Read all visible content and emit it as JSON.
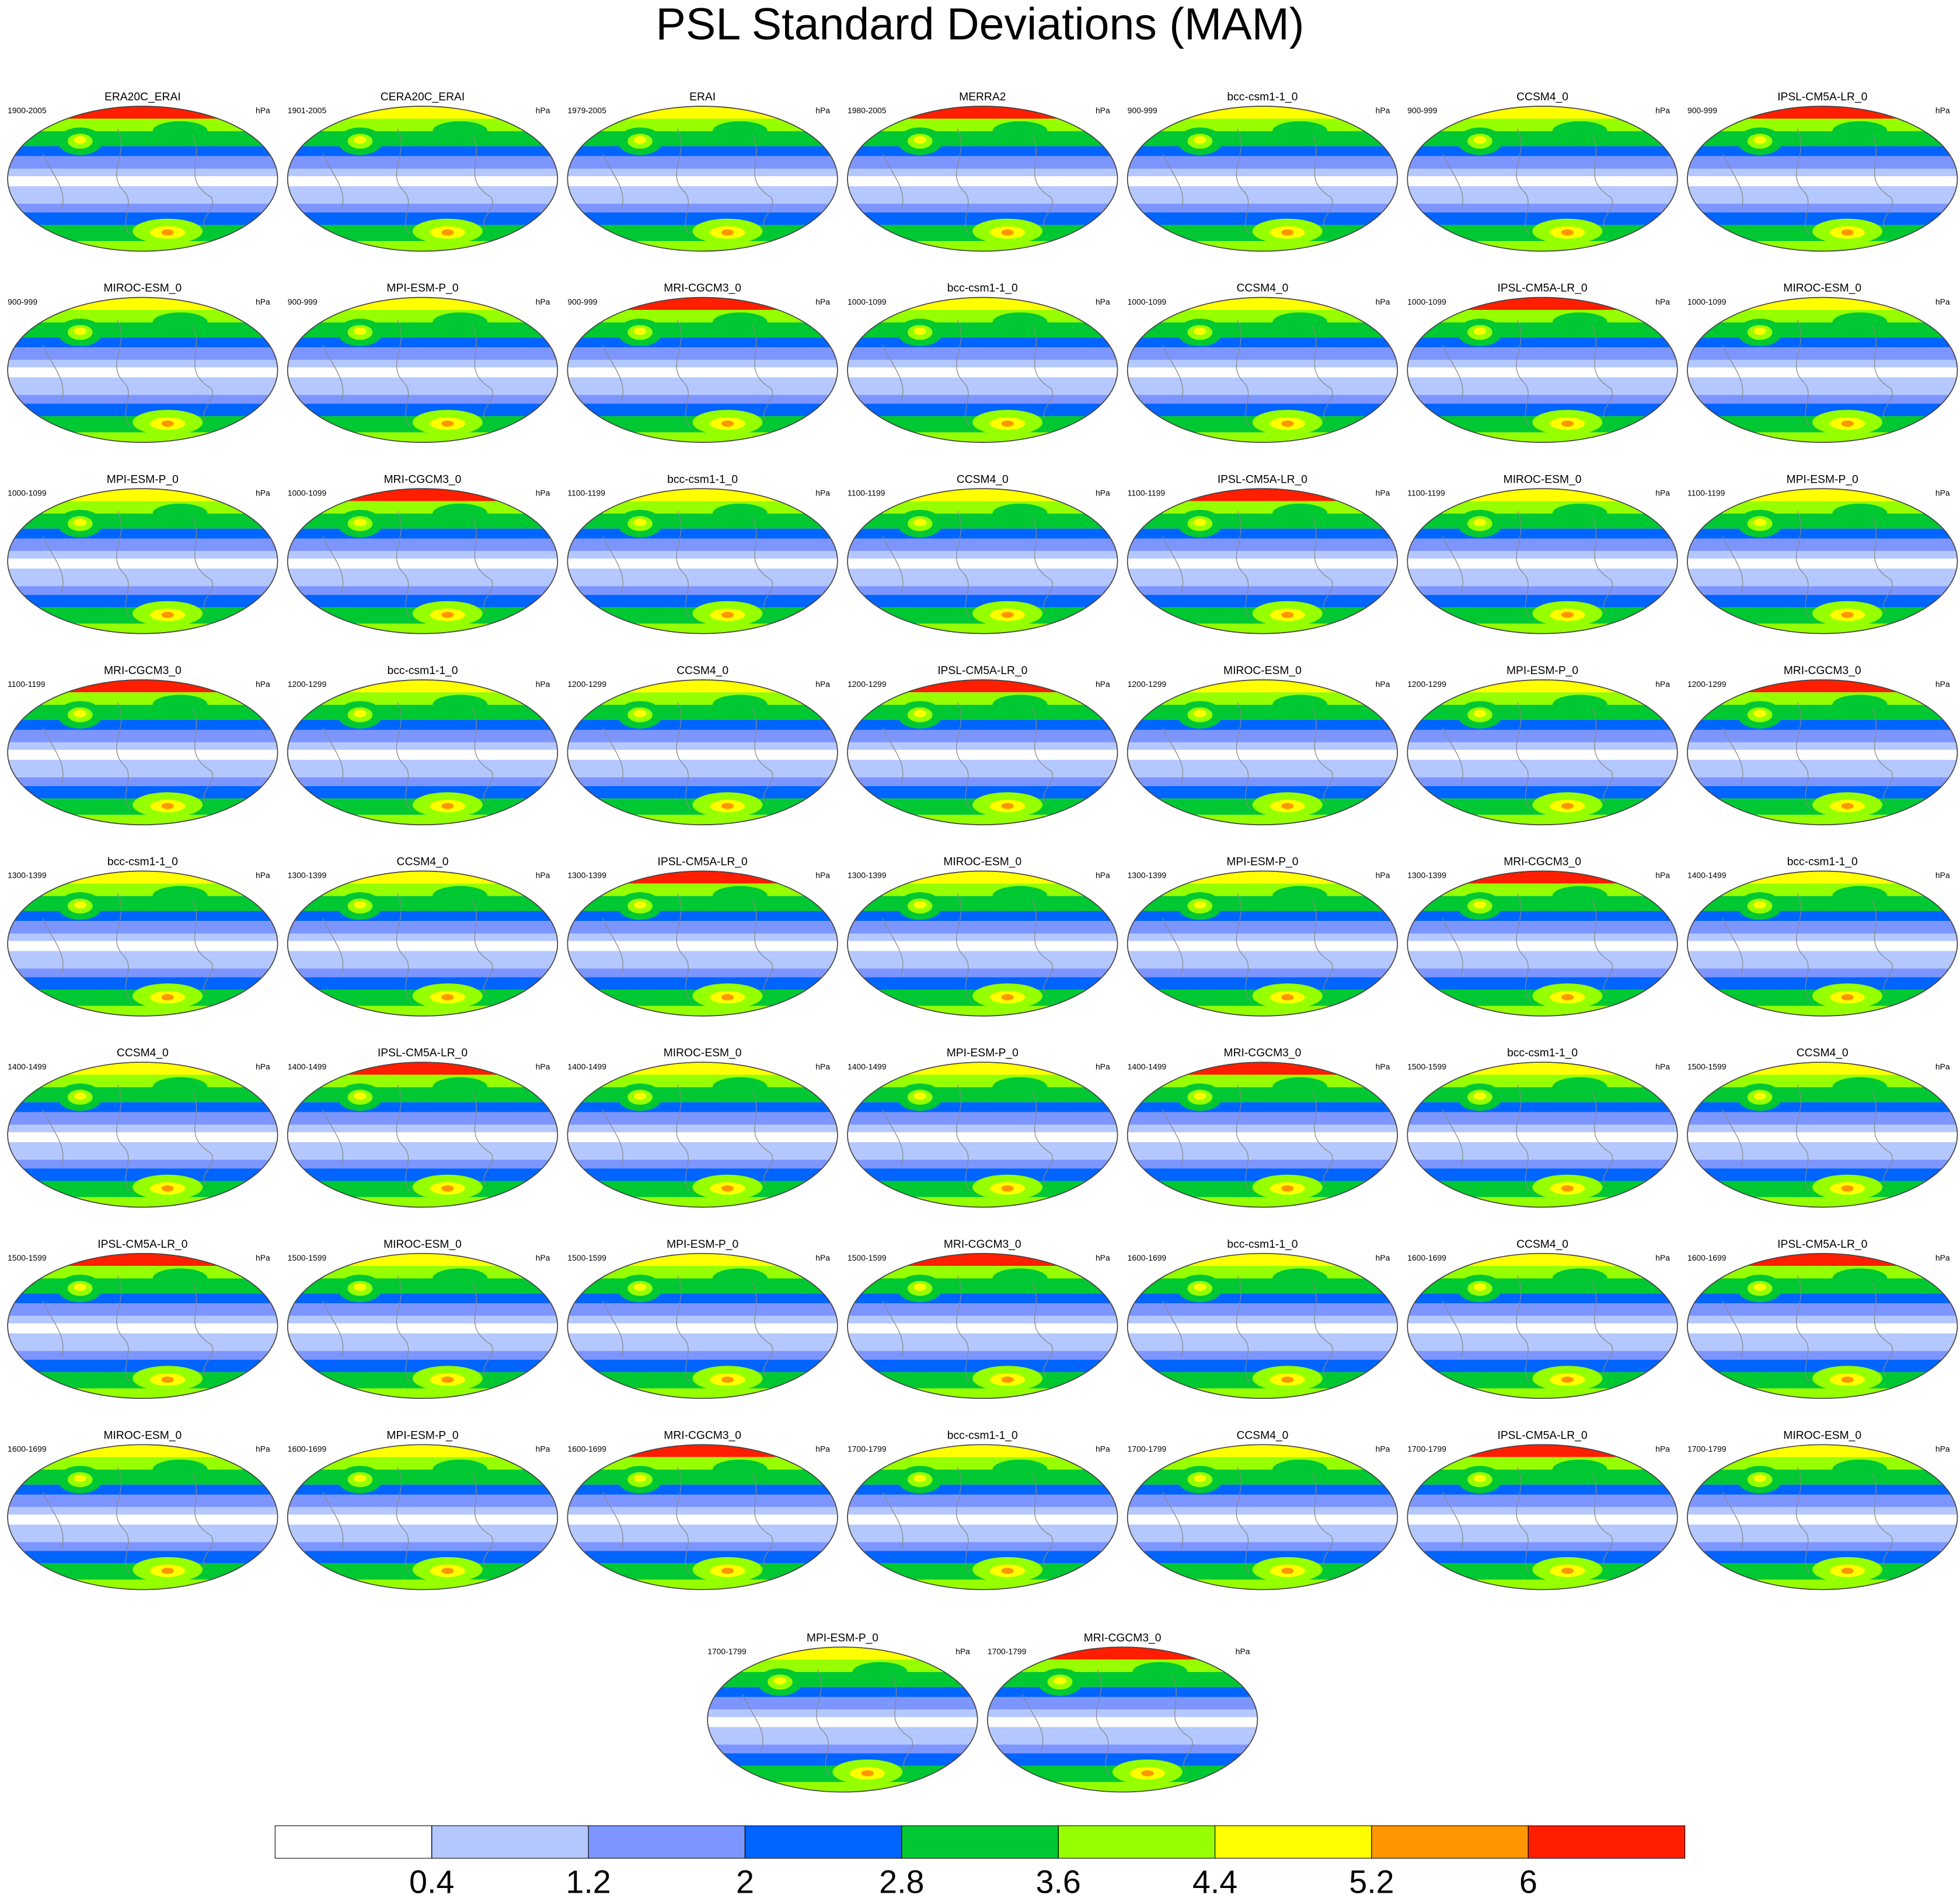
{
  "title": "PSL Standard Deviations (MAM)",
  "units": "hPa",
  "panels": [
    {
      "title": "ERA20C_ERAI",
      "period": "1900-2005"
    },
    {
      "title": "CERA20C_ERAI",
      "period": "1901-2005"
    },
    {
      "title": "ERAI",
      "period": "1979-2005"
    },
    {
      "title": "MERRA2",
      "period": "1980-2005"
    },
    {
      "title": "bcc-csm1-1_0",
      "period": "900-999"
    },
    {
      "title": "CCSM4_0",
      "period": "900-999"
    },
    {
      "title": "IPSL-CM5A-LR_0",
      "period": "900-999"
    },
    {
      "title": "MIROC-ESM_0",
      "period": "900-999"
    },
    {
      "title": "MPI-ESM-P_0",
      "period": "900-999"
    },
    {
      "title": "MRI-CGCM3_0",
      "period": "900-999"
    },
    {
      "title": "bcc-csm1-1_0",
      "period": "1000-1099"
    },
    {
      "title": "CCSM4_0",
      "period": "1000-1099"
    },
    {
      "title": "IPSL-CM5A-LR_0",
      "period": "1000-1099"
    },
    {
      "title": "MIROC-ESM_0",
      "period": "1000-1099"
    },
    {
      "title": "MPI-ESM-P_0",
      "period": "1000-1099"
    },
    {
      "title": "MRI-CGCM3_0",
      "period": "1000-1099"
    },
    {
      "title": "bcc-csm1-1_0",
      "period": "1100-1199"
    },
    {
      "title": "CCSM4_0",
      "period": "1100-1199"
    },
    {
      "title": "IPSL-CM5A-LR_0",
      "period": "1100-1199"
    },
    {
      "title": "MIROC-ESM_0",
      "period": "1100-1199"
    },
    {
      "title": "MPI-ESM-P_0",
      "period": "1100-1199"
    },
    {
      "title": "MRI-CGCM3_0",
      "period": "1100-1199"
    },
    {
      "title": "bcc-csm1-1_0",
      "period": "1200-1299"
    },
    {
      "title": "CCSM4_0",
      "period": "1200-1299"
    },
    {
      "title": "IPSL-CM5A-LR_0",
      "period": "1200-1299"
    },
    {
      "title": "MIROC-ESM_0",
      "period": "1200-1299"
    },
    {
      "title": "MPI-ESM-P_0",
      "period": "1200-1299"
    },
    {
      "title": "MRI-CGCM3_0",
      "period": "1200-1299"
    },
    {
      "title": "bcc-csm1-1_0",
      "period": "1300-1399"
    },
    {
      "title": "CCSM4_0",
      "period": "1300-1399"
    },
    {
      "title": "IPSL-CM5A-LR_0",
      "period": "1300-1399"
    },
    {
      "title": "MIROC-ESM_0",
      "period": "1300-1399"
    },
    {
      "title": "MPI-ESM-P_0",
      "period": "1300-1399"
    },
    {
      "title": "MRI-CGCM3_0",
      "period": "1300-1399"
    },
    {
      "title": "bcc-csm1-1_0",
      "period": "1400-1499"
    },
    {
      "title": "CCSM4_0",
      "period": "1400-1499"
    },
    {
      "title": "IPSL-CM5A-LR_0",
      "period": "1400-1499"
    },
    {
      "title": "MIROC-ESM_0",
      "period": "1400-1499"
    },
    {
      "title": "MPI-ESM-P_0",
      "period": "1400-1499"
    },
    {
      "title": "MRI-CGCM3_0",
      "period": "1400-1499"
    },
    {
      "title": "bcc-csm1-1_0",
      "period": "1500-1599"
    },
    {
      "title": "CCSM4_0",
      "period": "1500-1599"
    },
    {
      "title": "IPSL-CM5A-LR_0",
      "period": "1500-1599"
    },
    {
      "title": "MIROC-ESM_0",
      "period": "1500-1599"
    },
    {
      "title": "MPI-ESM-P_0",
      "period": "1500-1599"
    },
    {
      "title": "MRI-CGCM3_0",
      "period": "1500-1599"
    },
    {
      "title": "bcc-csm1-1_0",
      "period": "1600-1699"
    },
    {
      "title": "CCSM4_0",
      "period": "1600-1699"
    },
    {
      "title": "IPSL-CM5A-LR_0",
      "period": "1600-1699"
    },
    {
      "title": "MIROC-ESM_0",
      "period": "1600-1699"
    },
    {
      "title": "MPI-ESM-P_0",
      "period": "1600-1699"
    },
    {
      "title": "MRI-CGCM3_0",
      "period": "1600-1699"
    },
    {
      "title": "bcc-csm1-1_0",
      "period": "1700-1799"
    },
    {
      "title": "CCSM4_0",
      "period": "1700-1799"
    },
    {
      "title": "IPSL-CM5A-LR_0",
      "period": "1700-1799"
    },
    {
      "title": "MIROC-ESM_0",
      "period": "1700-1799"
    },
    {
      "title": "MPI-ESM-P_0",
      "period": "1700-1799"
    },
    {
      "title": "MRI-CGCM3_0",
      "period": "1700-1799"
    }
  ],
  "colorbar": {
    "levels": [
      0.4,
      1.2,
      2,
      2.8,
      3.6,
      4.4,
      5.2,
      6
    ],
    "colors": [
      "#ffffff",
      "#b4c8ff",
      "#7d96ff",
      "#0064ff",
      "#00c832",
      "#96ff00",
      "#ffff00",
      "#ff9600",
      "#ff1e00"
    ]
  }
}
